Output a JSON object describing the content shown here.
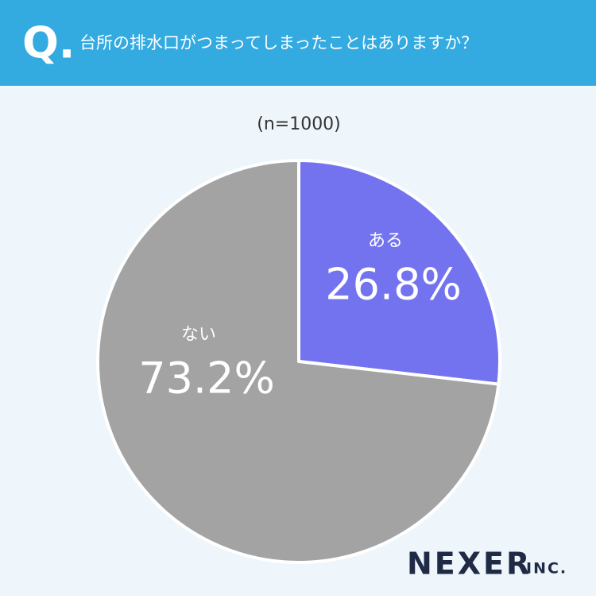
{
  "chart_data": {
    "type": "pie",
    "title": "台所の排水口がつまってしまったことはありますか？",
    "subtitle": "(n=1000)",
    "categories": [
      "ある",
      "ない"
    ],
    "values": [
      26.8,
      73.2
    ],
    "value_labels": [
      "26.8%",
      "73.2%"
    ],
    "colors": [
      "#7373f0",
      "#a3a3a3"
    ]
  },
  "header": {
    "badge": "Q."
  },
  "footer": {
    "brand": "NEXER",
    "suffix": "INC."
  }
}
